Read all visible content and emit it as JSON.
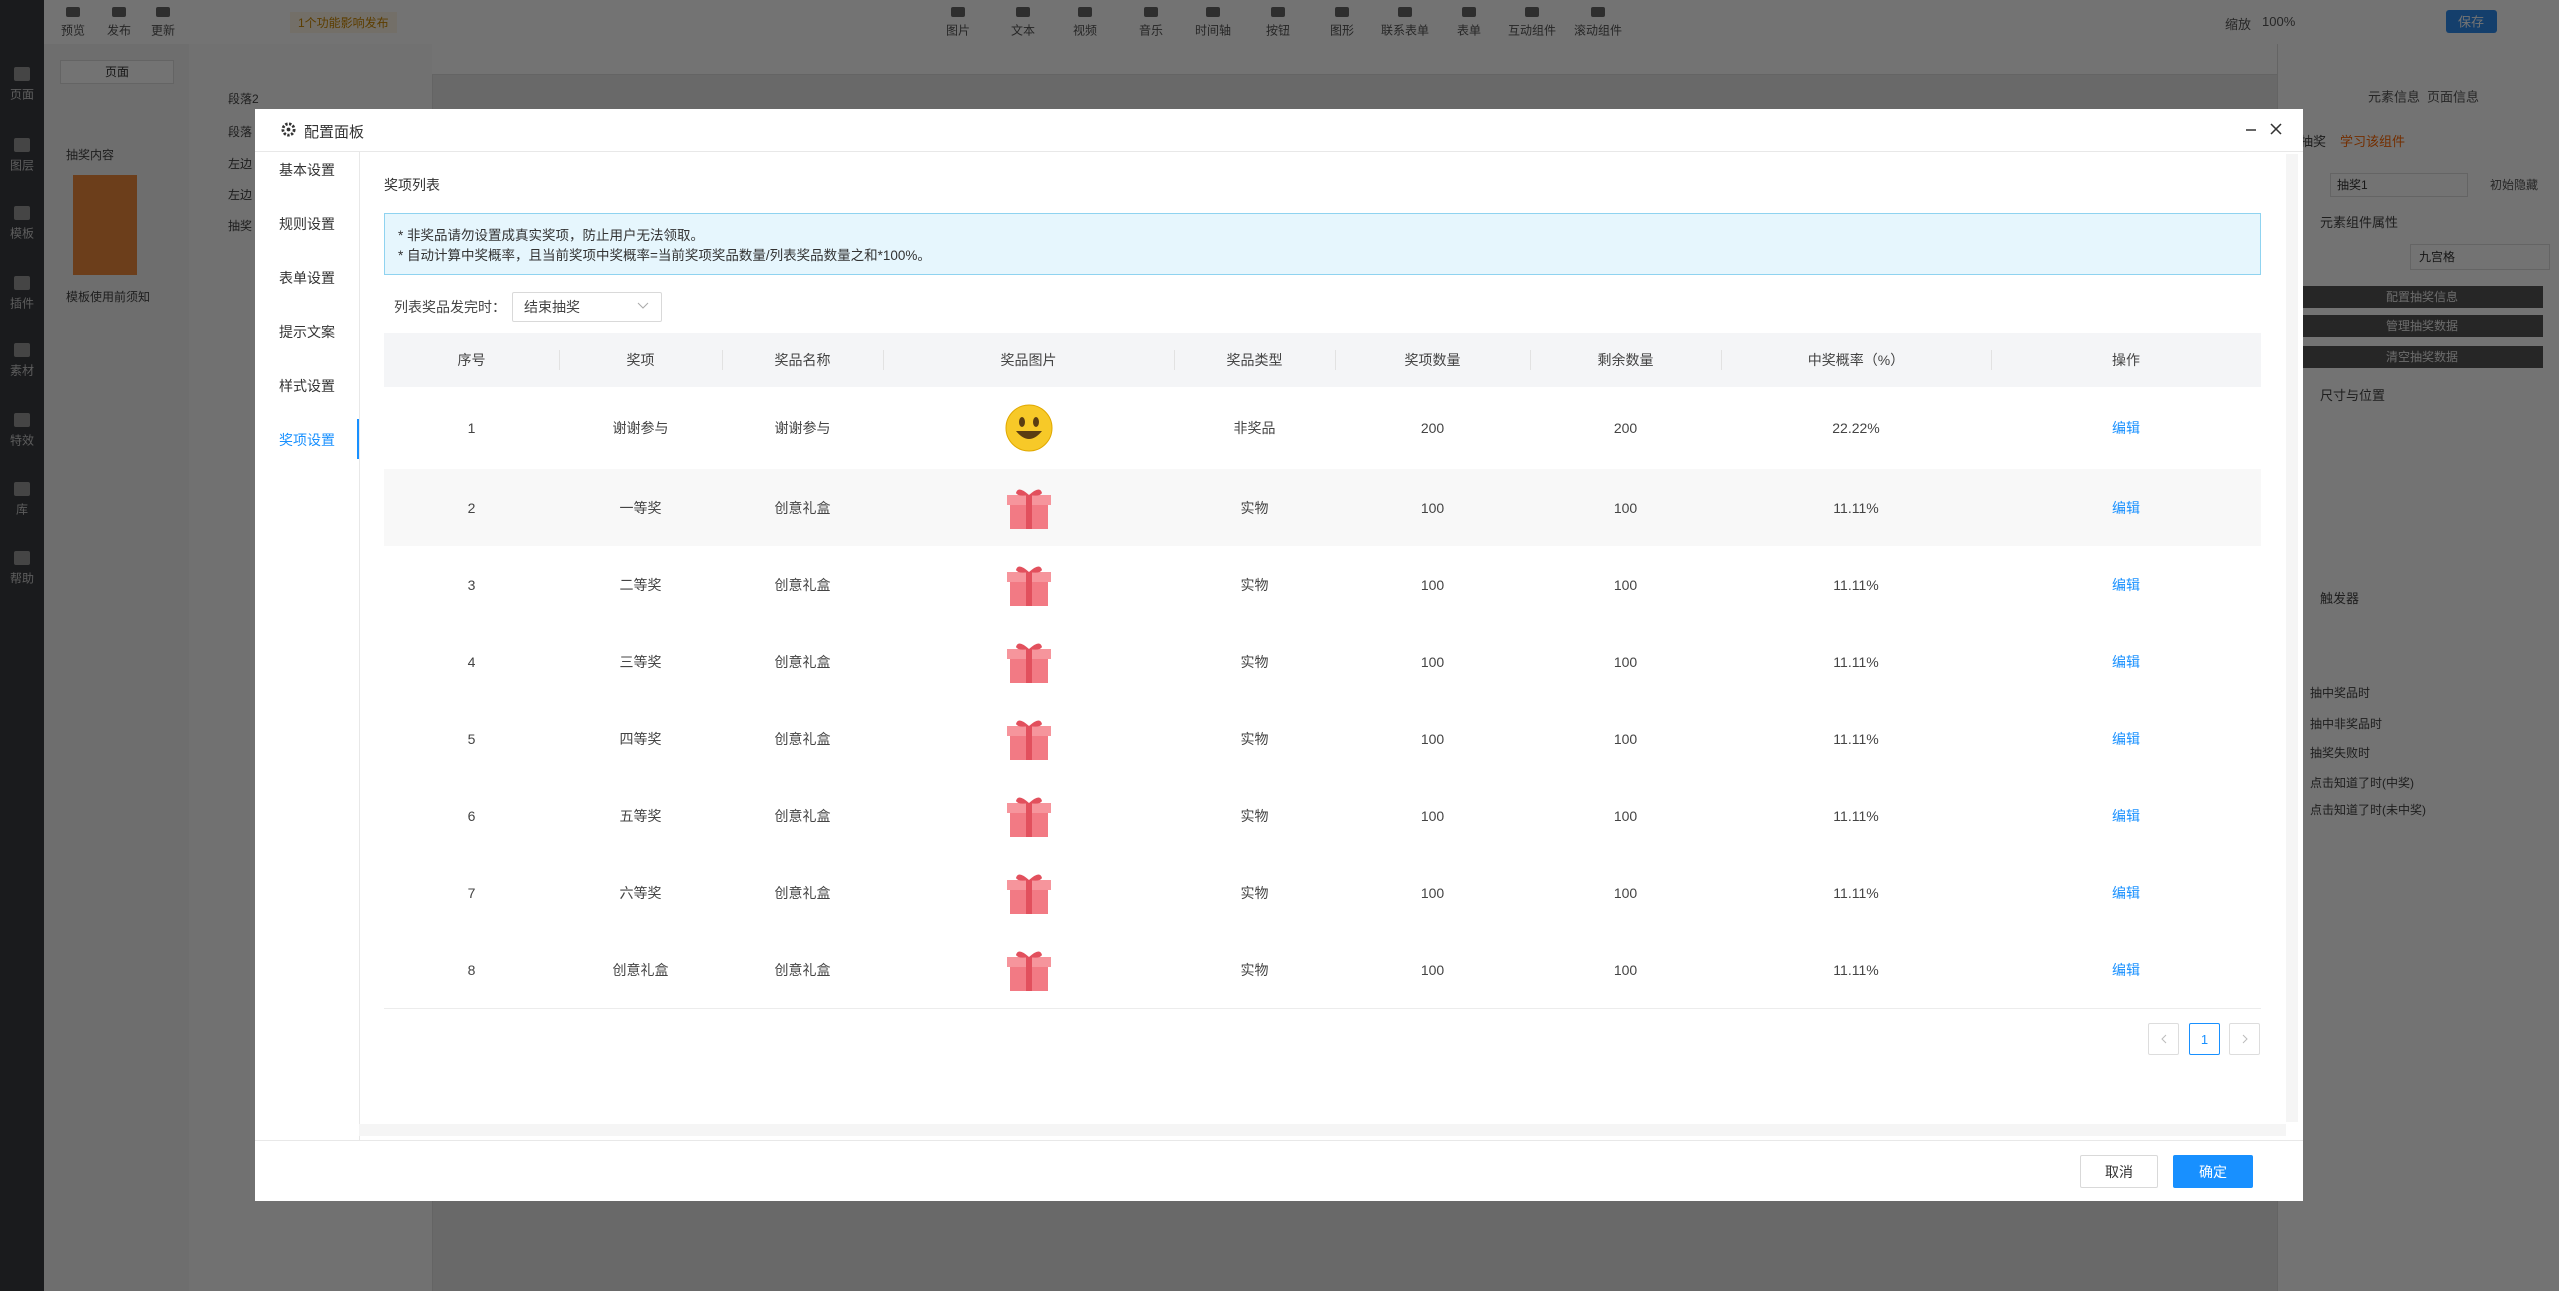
{
  "editor": {
    "top_tools": [
      "预览",
      "发布",
      "更新"
    ],
    "notice": "1个功能影响发布",
    "toolbar": [
      "图片",
      "文本",
      "视频",
      "音乐",
      "时间轴",
      "按钮",
      "图形",
      "联系表单",
      "表单",
      "互动组件",
      "滚动组件"
    ],
    "zoom": "缩放",
    "zoom_value": "100%",
    "save": "保存",
    "sidebar": [
      "页面",
      "图层",
      "模板",
      "插件",
      "素材",
      "特效",
      "库",
      "帮助"
    ],
    "page_select": "页面",
    "groups": [
      "抽奖内容",
      "模板使用前须知"
    ],
    "layers": [
      "段落2",
      "段落",
      "左边",
      "左边",
      "抽奖"
    ],
    "right_tabs": [
      "元素信息",
      "页面信息"
    ],
    "element": "抽奖",
    "learn": "学习该组件",
    "element_name": "抽奖1",
    "hidden": "初始隐藏",
    "props_title": "元素组件属性",
    "layout": "九宫格",
    "prop_buttons": [
      "配置抽奖信息",
      "管理抽奖数据",
      "清空抽奖数据"
    ],
    "size_title": "尺寸与位置",
    "triggers_title": "触发器",
    "triggers": [
      "抽中奖品时",
      "抽中非奖品时",
      "抽奖失败时",
      "点击知道了时(中奖)",
      "点击知道了时(未中奖)"
    ]
  },
  "header": {
    "title": "配置面板"
  },
  "nav": [
    {
      "label": "基本设置",
      "active": false
    },
    {
      "label": "规则设置",
      "active": false
    },
    {
      "label": "表单设置",
      "active": false
    },
    {
      "label": "提示文案",
      "active": false
    },
    {
      "label": "样式设置",
      "active": false
    },
    {
      "label": "奖项设置",
      "active": true
    }
  ],
  "section_title": "奖项列表",
  "notice": [
    "* 非奖品请勿设置成真实奖项，防止用户无法领取。",
    "* 自动计算中奖概率，且当前奖项中奖概率=当前奖项奖品数量/列表奖品数量之和*100%。"
  ],
  "exhaust": {
    "label": "列表奖品发完时：",
    "value": "结束抽奖"
  },
  "table": {
    "columns": [
      "序号",
      "奖项",
      "奖品名称",
      "奖品图片",
      "奖品类型",
      "奖项数量",
      "剩余数量",
      "中奖概率（%）",
      "操作"
    ],
    "rows": [
      {
        "index": 1,
        "item": "谢谢参与",
        "name": "谢谢参与",
        "image": "smiley",
        "type": "非奖品",
        "quantity": 200,
        "remaining": 200,
        "probability": "22.22%",
        "action": "编辑"
      },
      {
        "index": 2,
        "item": "一等奖",
        "name": "创意礼盒",
        "image": "gift",
        "type": "实物",
        "quantity": 100,
        "remaining": 100,
        "probability": "11.11%",
        "action": "编辑"
      },
      {
        "index": 3,
        "item": "二等奖",
        "name": "创意礼盒",
        "image": "gift",
        "type": "实物",
        "quantity": 100,
        "remaining": 100,
        "probability": "11.11%",
        "action": "编辑"
      },
      {
        "index": 4,
        "item": "三等奖",
        "name": "创意礼盒",
        "image": "gift",
        "type": "实物",
        "quantity": 100,
        "remaining": 100,
        "probability": "11.11%",
        "action": "编辑"
      },
      {
        "index": 5,
        "item": "四等奖",
        "name": "创意礼盒",
        "image": "gift",
        "type": "实物",
        "quantity": 100,
        "remaining": 100,
        "probability": "11.11%",
        "action": "编辑"
      },
      {
        "index": 6,
        "item": "五等奖",
        "name": "创意礼盒",
        "image": "gift",
        "type": "实物",
        "quantity": 100,
        "remaining": 100,
        "probability": "11.11%",
        "action": "编辑"
      },
      {
        "index": 7,
        "item": "六等奖",
        "name": "创意礼盒",
        "image": "gift",
        "type": "实物",
        "quantity": 100,
        "remaining": 100,
        "probability": "11.11%",
        "action": "编辑"
      },
      {
        "index": 8,
        "item": "创意礼盒",
        "name": "创意礼盒",
        "image": "gift",
        "type": "实物",
        "quantity": 100,
        "remaining": 100,
        "probability": "11.11%",
        "action": "编辑"
      }
    ]
  },
  "pagination": {
    "current": 1
  },
  "footer": {
    "cancel": "取消",
    "ok": "确定"
  }
}
